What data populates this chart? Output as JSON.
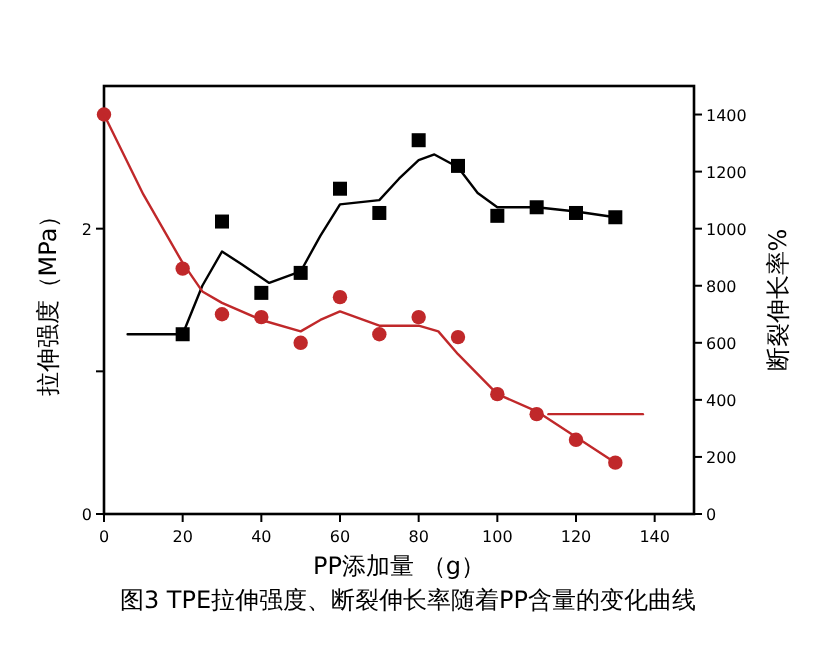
{
  "chart_data": {
    "type": "scatter",
    "xlabel": "PP添加量 （g）",
    "ylabel": "拉伸强度（MPa）",
    "y2label": "断裂伸长率%",
    "annotations": [
      "图3 TPE拉伸强度、断裂伸长率随着PP含量的变化曲线"
    ],
    "xlim": [
      0,
      150
    ],
    "xticks": [
      0,
      20,
      40,
      60,
      80,
      100,
      120,
      140
    ],
    "ylim": [
      0,
      3
    ],
    "yticks": [
      0,
      {
        "value": 1,
        "label": null
      },
      2
    ],
    "y2lim": [
      0,
      1500
    ],
    "y2ticks": [
      0,
      200,
      400,
      600,
      800,
      1000,
      1200,
      1400
    ],
    "grid": false,
    "series": [
      {
        "color": "#000000",
        "marker": "square",
        "x": [
          20,
          30,
          40,
          50,
          60,
          70,
          80,
          90,
          100,
          110,
          120,
          130
        ],
        "values": [
          1.26,
          2.05,
          1.55,
          1.69,
          2.28,
          2.11,
          2.62,
          2.44,
          2.09,
          2.15,
          2.11,
          2.08
        ]
      },
      {
        "color": "#c0282a",
        "marker": "circle",
        "axis": "y2",
        "x": [
          0,
          20,
          30,
          40,
          50,
          60,
          70,
          80,
          90,
          100,
          110,
          120,
          130
        ],
        "values": [
          1400,
          860,
          700,
          690,
          600,
          760,
          630,
          690,
          620,
          420,
          350,
          260,
          180
        ]
      },
      {
        "type": "line",
        "color": "#000000",
        "x": [
          6,
          20,
          25,
          30,
          35,
          42,
          50,
          55,
          60,
          70,
          75,
          80,
          84,
          90,
          95,
          100,
          110,
          120,
          130
        ],
        "values": [
          1.26,
          1.26,
          1.6,
          1.84,
          1.75,
          1.62,
          1.7,
          1.95,
          2.17,
          2.2,
          2.35,
          2.48,
          2.52,
          2.43,
          2.25,
          2.15,
          2.15,
          2.12,
          2.08
        ]
      },
      {
        "type": "line",
        "color": "#c0282a",
        "axis": "y2",
        "x": [
          0,
          10,
          20,
          25,
          30,
          40,
          50,
          55,
          60,
          70,
          80,
          85,
          90,
          100,
          110,
          120,
          130
        ],
        "values": [
          1400,
          1120,
          880,
          780,
          740,
          680,
          640,
          680,
          710,
          660,
          660,
          640,
          560,
          420,
          360,
          270,
          180
        ]
      },
      {
        "type": "line",
        "color": "#c0282a",
        "axis": "y2",
        "x": [
          113,
          137
        ],
        "values": [
          350,
          350
        ]
      }
    ]
  }
}
